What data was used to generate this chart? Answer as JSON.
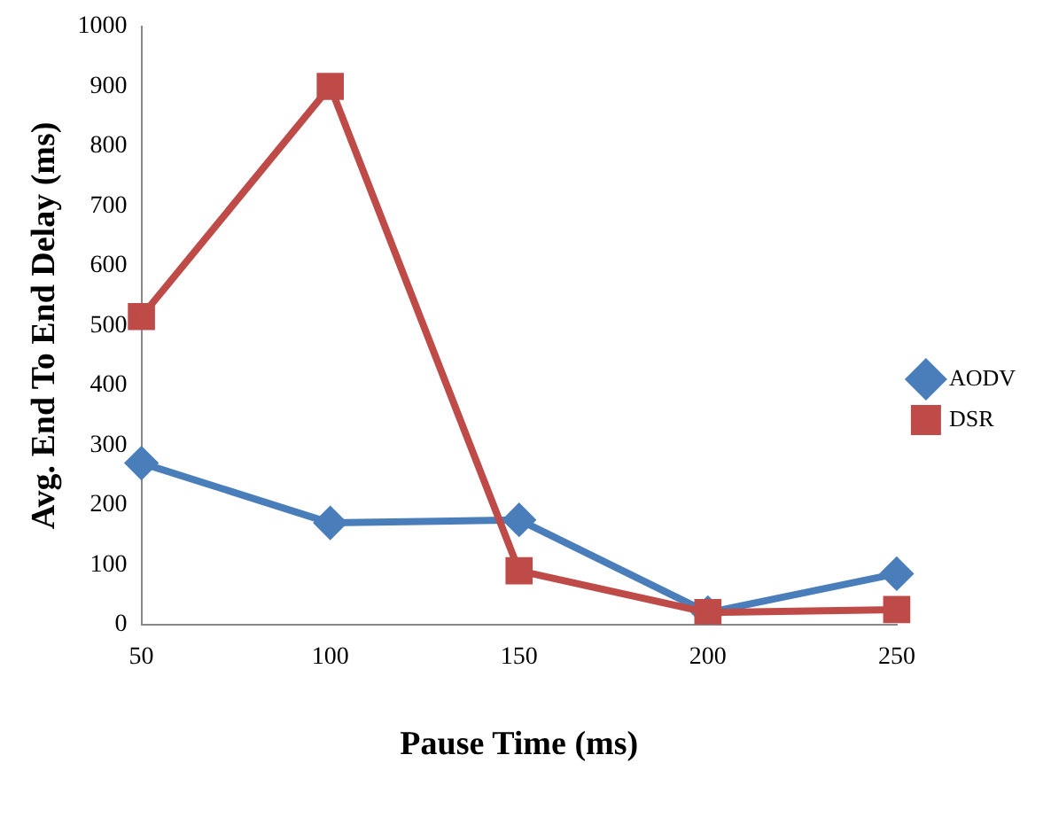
{
  "chart_data": {
    "type": "line",
    "xlabel": "Pause Time (ms)",
    "ylabel": "Avg. End To End Delay (ms)",
    "categories": [
      "50",
      "100",
      "150",
      "200",
      "250"
    ],
    "series": [
      {
        "name": "AODV",
        "color": "#4a7ebb",
        "marker": "diamond",
        "values": [
          270,
          170,
          175,
          20,
          85
        ]
      },
      {
        "name": "DSR",
        "color": "#be4b48",
        "marker": "square",
        "values": [
          515,
          900,
          90,
          20,
          25
        ]
      }
    ],
    "ylim": [
      0,
      1000
    ],
    "yticks": [
      0,
      100,
      200,
      300,
      400,
      500,
      600,
      700,
      800,
      900,
      1000
    ],
    "grid": false,
    "legend": "right",
    "line_style": "solid"
  }
}
